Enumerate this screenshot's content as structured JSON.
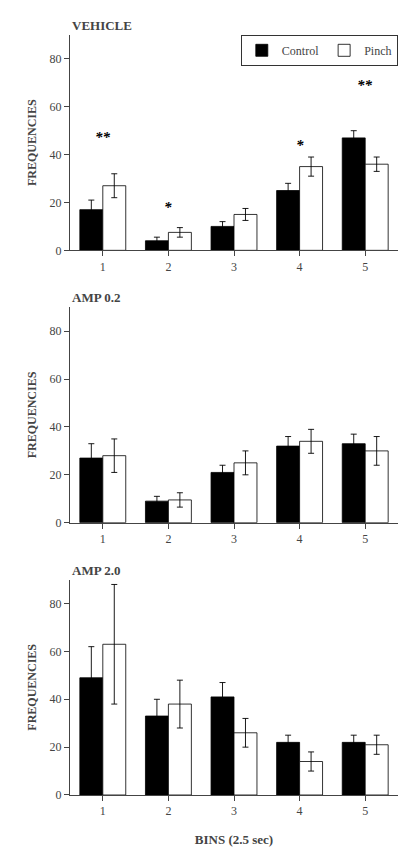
{
  "chart_data": [
    {
      "type": "bar",
      "title": "VEHICLE",
      "categories": [
        "1",
        "2",
        "3",
        "4",
        "5"
      ],
      "series": [
        {
          "name": "Control",
          "color": "#000000",
          "values": [
            17,
            4,
            10,
            25,
            47
          ],
          "errors": [
            4,
            1.5,
            2,
            3,
            3
          ]
        },
        {
          "name": "Pinch",
          "color": "#ffffff",
          "values": [
            27,
            7.5,
            15,
            35,
            36
          ],
          "errors": [
            5,
            2,
            2.5,
            4,
            3
          ]
        }
      ],
      "annotations": [
        {
          "x": "1",
          "y": 43,
          "text": "**"
        },
        {
          "x": "2",
          "y": 14,
          "text": "*"
        },
        {
          "x": "4",
          "y": 40,
          "text": "*"
        },
        {
          "x": "5",
          "y": 65,
          "text": "**"
        }
      ],
      "ylabel": "FREQUENCIES",
      "ylim": [
        0,
        90
      ],
      "yticks": [
        0,
        20,
        40,
        60,
        80
      ],
      "grid": false,
      "legend": "upper right"
    },
    {
      "type": "bar",
      "title": "AMP 0.2",
      "categories": [
        "1",
        "2",
        "3",
        "4",
        "5"
      ],
      "series": [
        {
          "color": "#000000",
          "values": [
            27,
            9,
            21,
            32,
            33
          ],
          "errors": [
            6,
            2,
            3,
            4,
            4
          ]
        },
        {
          "color": "#ffffff",
          "values": [
            28,
            9.5,
            25,
            34,
            30
          ],
          "errors": [
            7,
            3,
            5,
            5,
            6
          ]
        }
      ],
      "ylabel": "FREQUENCIES",
      "ylim": [
        0,
        90
      ],
      "yticks": [
        0,
        20,
        40,
        60,
        80
      ],
      "grid": false
    },
    {
      "type": "bar",
      "title": "AMP 2.0",
      "categories": [
        "1",
        "2",
        "3",
        "4",
        "5"
      ],
      "series": [
        {
          "color": "#000000",
          "values": [
            49,
            33,
            41,
            22,
            22
          ],
          "errors": [
            13,
            7,
            6,
            3,
            3
          ]
        },
        {
          "color": "#ffffff",
          "values": [
            63,
            38,
            26,
            14,
            21
          ],
          "errors": [
            25,
            10,
            6,
            4,
            4
          ]
        }
      ],
      "xlabel": "BINS (2.5 sec)",
      "ylabel": "FREQUENCIES",
      "ylim": [
        0,
        90
      ],
      "yticks": [
        0,
        20,
        40,
        60,
        80
      ],
      "grid": false
    }
  ]
}
